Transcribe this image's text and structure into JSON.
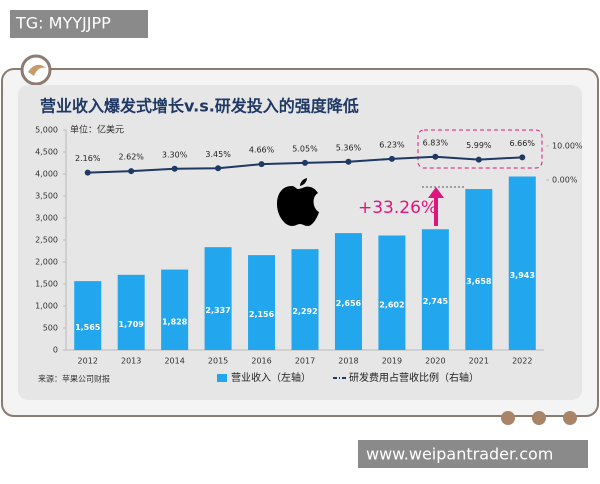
{
  "header": {
    "tag": "TG: MYYJJPP",
    "footer": "www.weipantrader.com"
  },
  "chart_data": {
    "type": "bar",
    "title": "营业收入爆发式增长v.s.研发投入的强度降低",
    "unit_label": "单位：亿美元",
    "source": "来源：苹果公司财报",
    "annotation": "+33.26%",
    "categories": [
      "2012",
      "2013",
      "2014",
      "2015",
      "2016",
      "2017",
      "2018",
      "2019",
      "2020",
      "2021",
      "2022"
    ],
    "series": [
      {
        "name": "营业收入（左轴）",
        "type": "bar",
        "color": "#22a6ee",
        "values": [
          1565,
          1709,
          1828,
          2337,
          2156,
          2292,
          2656,
          2602,
          2745,
          3658,
          3943
        ],
        "value_labels": [
          "1,565",
          "1,709",
          "1,828",
          "2,337",
          "2,156",
          "2,292",
          "2,656",
          "2,602",
          "2,745",
          "3,658",
          "3,943"
        ]
      },
      {
        "name": "研发费用占营收比例（右轴）",
        "type": "line",
        "axis": "y2",
        "color": "#1f3864",
        "values": [
          2.16,
          2.62,
          3.3,
          3.45,
          4.66,
          5.05,
          5.36,
          6.23,
          6.83,
          5.99,
          6.66
        ],
        "value_labels": [
          "2.16%",
          "2.62%",
          "3.30%",
          "3.45%",
          "4.66%",
          "5.05%",
          "5.36%",
          "6.23%",
          "6.83%",
          "5.99%",
          "6.66%"
        ]
      }
    ],
    "ylim": [
      0,
      5000
    ],
    "yticks": [
      {
        "value": 0,
        "label": "0"
      },
      {
        "value": 500,
        "label": "500"
      },
      {
        "value": 1000,
        "label": "1,000"
      },
      {
        "value": 1500,
        "label": "1,500"
      },
      {
        "value": 2000,
        "label": "2,000"
      },
      {
        "value": 2500,
        "label": "2,500"
      },
      {
        "value": 3000,
        "label": "3,000"
      },
      {
        "value": 3500,
        "label": "3,500"
      },
      {
        "value": 4000,
        "label": "4,000"
      },
      {
        "value": 4500,
        "label": "4,500"
      },
      {
        "value": 5000,
        "label": "5,000"
      }
    ],
    "y2lim": [
      0,
      10
    ],
    "y2ticks": [
      {
        "value": 10,
        "label": "10.00%"
      },
      {
        "value": 0,
        "label": "0.00%"
      }
    ],
    "grid": false
  }
}
